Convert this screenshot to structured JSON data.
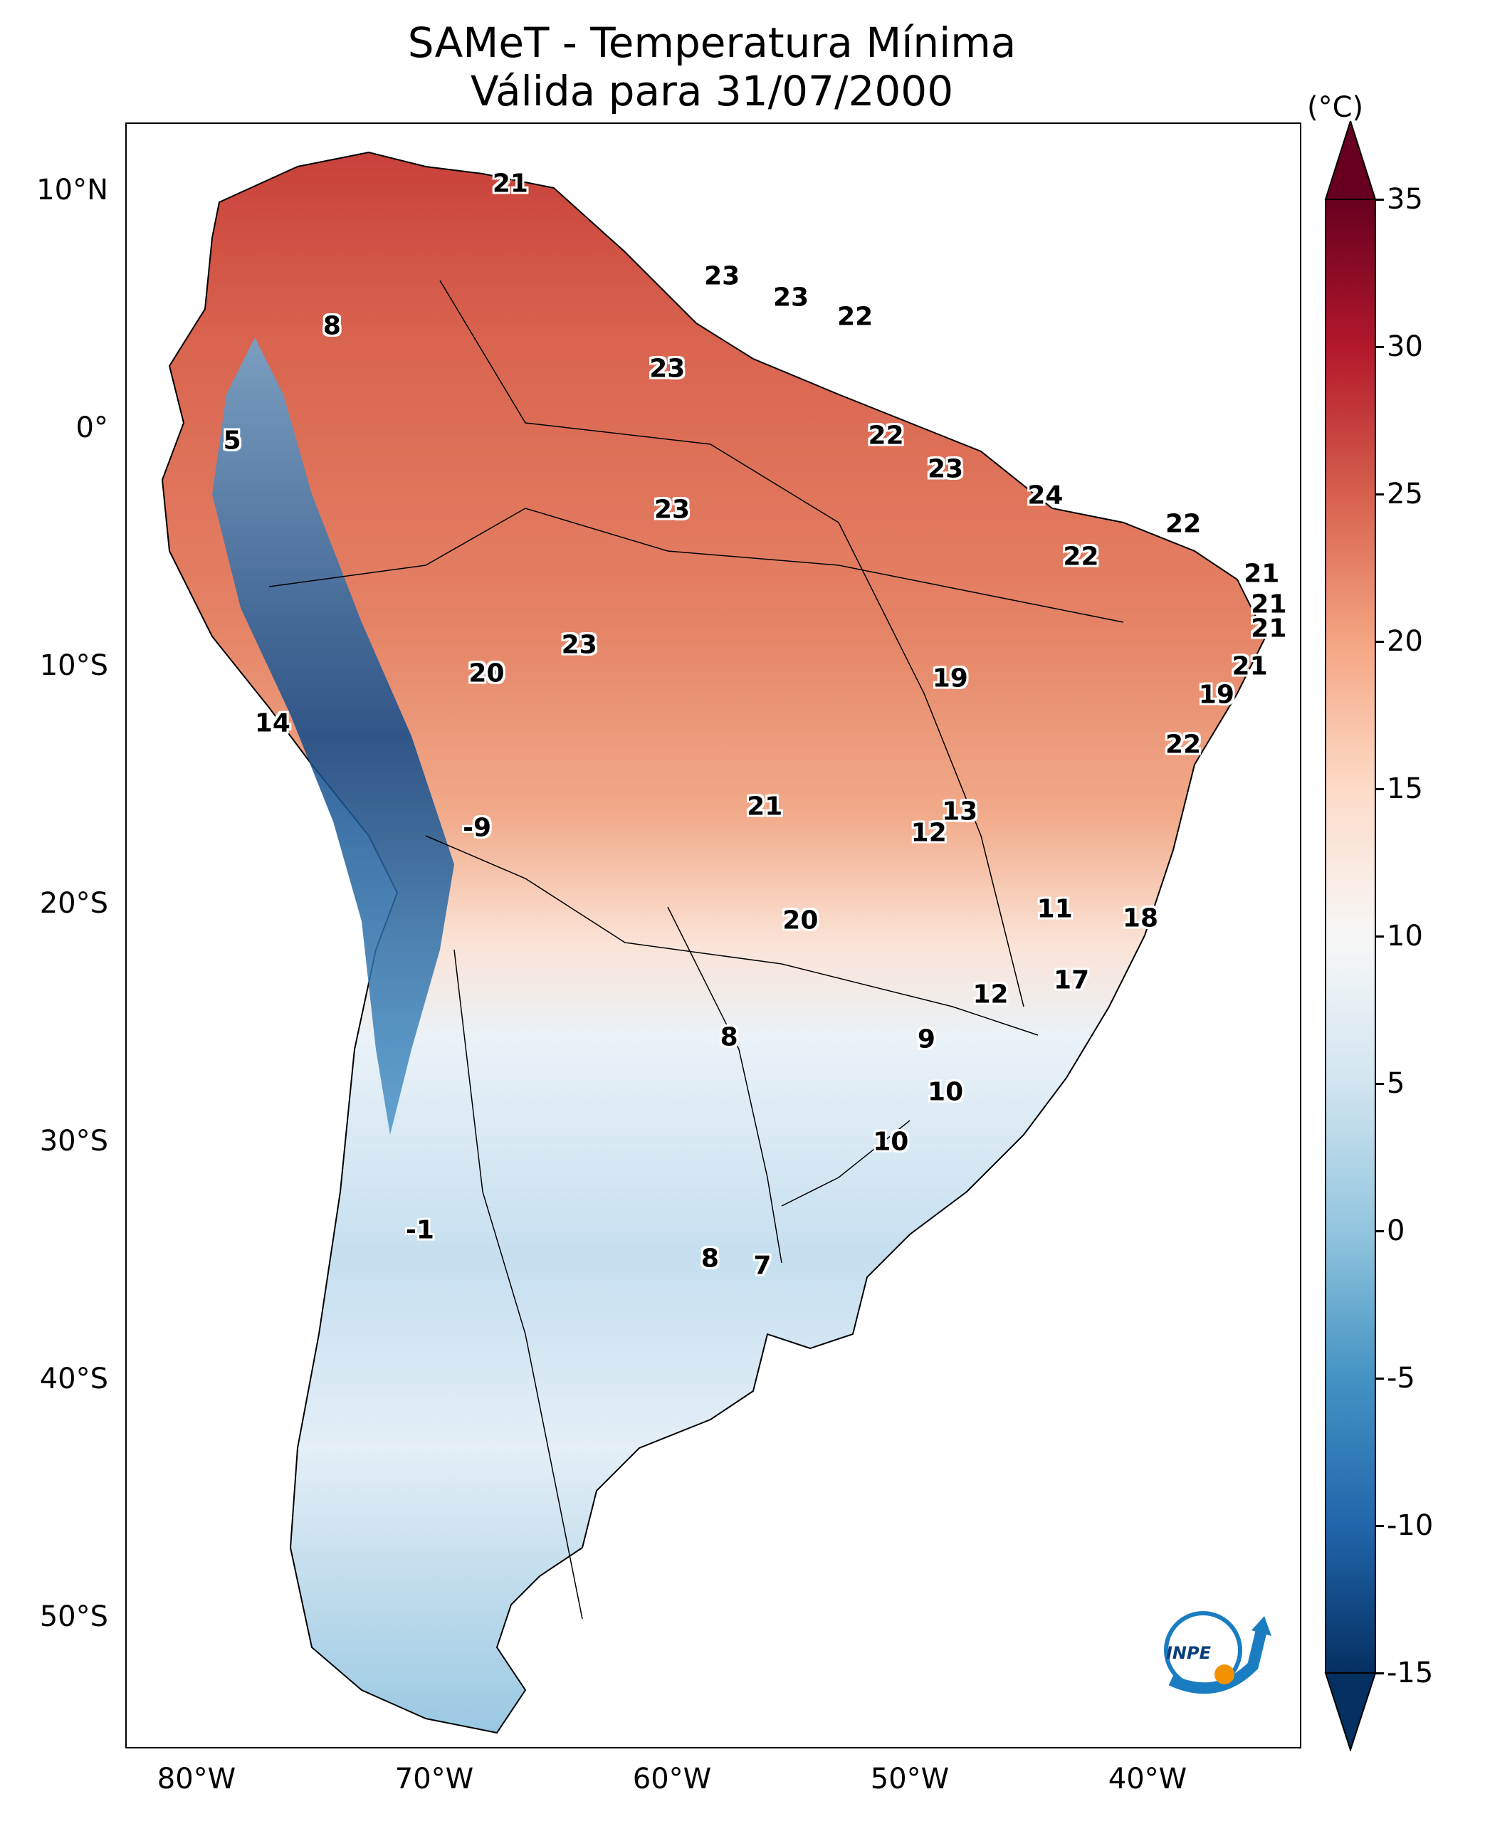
{
  "title": {
    "line1": "SAMeT - Temperatura Mínima",
    "line2": "Válida para 31/07/2000"
  },
  "axes": {
    "lat_ticks": [
      "10°N",
      "0°",
      "10°S",
      "20°S",
      "30°S",
      "40°S",
      "50°S"
    ],
    "lon_ticks": [
      "80°W",
      "70°W",
      "60°W",
      "50°W",
      "40°W"
    ]
  },
  "colorbar": {
    "unit": "(°C)",
    "ticks": [
      "35",
      "30",
      "25",
      "20",
      "15",
      "10",
      "5",
      "0",
      "-5",
      "-10",
      "-15"
    ],
    "range": [
      -15,
      35
    ],
    "colormap": "RdBu_r",
    "colors": [
      "#053061",
      "#2166ac",
      "#4393c3",
      "#92c5de",
      "#d1e5f0",
      "#f7f7f7",
      "#fddbc7",
      "#f4a582",
      "#d6604d",
      "#b2182b",
      "#67001f"
    ]
  },
  "station_values": [
    {
      "value": "21",
      "lon": -66.8,
      "lat": 10.6
    },
    {
      "value": "23",
      "lon": -57.9,
      "lat": 6.7
    },
    {
      "value": "23",
      "lon": -55.0,
      "lat": 5.8
    },
    {
      "value": "22",
      "lon": -52.3,
      "lat": 5.0
    },
    {
      "value": "8",
      "lon": -74.3,
      "lat": 4.6
    },
    {
      "value": "23",
      "lon": -60.2,
      "lat": 2.8
    },
    {
      "value": "5",
      "lon": -78.5,
      "lat": -0.2
    },
    {
      "value": "22",
      "lon": -51.0,
      "lat": 0.0
    },
    {
      "value": "23",
      "lon": -48.5,
      "lat": -1.4
    },
    {
      "value": "24",
      "lon": -44.3,
      "lat": -2.5
    },
    {
      "value": "23",
      "lon": -60.0,
      "lat": -3.1
    },
    {
      "value": "22",
      "lon": -38.5,
      "lat": -3.7
    },
    {
      "value": "22",
      "lon": -42.8,
      "lat": -5.1
    },
    {
      "value": "21",
      "lon": -35.2,
      "lat": -5.8
    },
    {
      "value": "21",
      "lon": -34.9,
      "lat": -7.1
    },
    {
      "value": "21",
      "lon": -34.9,
      "lat": -8.1
    },
    {
      "value": "23",
      "lon": -63.9,
      "lat": -8.8
    },
    {
      "value": "21",
      "lon": -35.7,
      "lat": -9.7
    },
    {
      "value": "20",
      "lon": -67.8,
      "lat": -10.0
    },
    {
      "value": "19",
      "lon": -48.3,
      "lat": -10.2
    },
    {
      "value": "19",
      "lon": -37.1,
      "lat": -10.9
    },
    {
      "value": "14",
      "lon": -76.8,
      "lat": -12.1
    },
    {
      "value": "22",
      "lon": -38.5,
      "lat": -13.0
    },
    {
      "value": "13",
      "lon": -47.9,
      "lat": -15.8
    },
    {
      "value": "21",
      "lon": -56.1,
      "lat": -15.6
    },
    {
      "value": "12",
      "lon": -49.2,
      "lat": -16.7
    },
    {
      "value": "-9",
      "lon": -68.2,
      "lat": -16.5
    },
    {
      "value": "11",
      "lon": -43.9,
      "lat": -19.9
    },
    {
      "value": "18",
      "lon": -40.3,
      "lat": -20.3
    },
    {
      "value": "20",
      "lon": -54.6,
      "lat": -20.4
    },
    {
      "value": "17",
      "lon": -43.2,
      "lat": -22.9
    },
    {
      "value": "12",
      "lon": -46.6,
      "lat": -23.5
    },
    {
      "value": "8",
      "lon": -57.6,
      "lat": -25.3
    },
    {
      "value": "9",
      "lon": -49.3,
      "lat": -25.4
    },
    {
      "value": "10",
      "lon": -48.5,
      "lat": -27.6
    },
    {
      "value": "10",
      "lon": -50.8,
      "lat": -29.7
    },
    {
      "value": "-1",
      "lon": -70.6,
      "lat": -33.4
    },
    {
      "value": "8",
      "lon": -58.4,
      "lat": -34.6
    },
    {
      "value": "7",
      "lon": -56.2,
      "lat": -34.9
    }
  ],
  "logo": {
    "text": "INPE",
    "ring_color": "#1a7dc2",
    "dot_color": "#f39200"
  }
}
